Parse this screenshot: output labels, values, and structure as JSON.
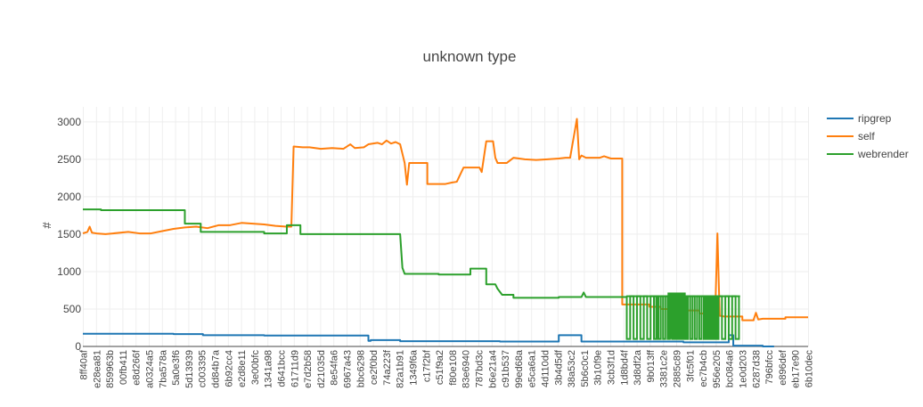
{
  "chart_data": {
    "type": "line",
    "title": "unknown type",
    "xlabel": "",
    "ylabel": "#",
    "ylim": [
      0,
      3200
    ],
    "yticks": [
      0,
      500,
      1000,
      1500,
      2000,
      2500,
      3000
    ],
    "grid": true,
    "legend_position": "top-right",
    "x_tick_labels": [
      "8ff40af",
      "e28ea81",
      "859963b",
      "00fb411",
      "e8d266f",
      "a0324a5",
      "7ba578a",
      "5a0e3f6",
      "5d13939",
      "c003395",
      "dd84b7a",
      "6b92cc4",
      "e2d8e11",
      "3e00bfc",
      "1341a98",
      "d641bcc",
      "61711d9",
      "e7d2b58",
      "d21035d",
      "8e54fa6",
      "6967a43",
      "bbc6298",
      "ce2f0bd",
      "74a223f",
      "82a1b91",
      "1349f6a",
      "c17f2bf",
      "c51f9a2",
      "f80e108",
      "83e6940",
      "787bd3c",
      "b6e21a4",
      "c91b537",
      "99ed68a",
      "e5ca6a1",
      "4d110dd",
      "3b4d5df",
      "38a53c2",
      "5b6c0c1",
      "3b10f9e",
      "3cb3f1d",
      "1d8bd4f",
      "3d8df2a",
      "9b013ff",
      "3381c2e",
      "2885c89",
      "3fc5f01",
      "ec7b4cb",
      "956e205",
      "bc084a6",
      "1e0d203",
      "6287d38",
      "796bfcc",
      "e896def",
      "eb17e90",
      "6b10dec"
    ],
    "series": [
      {
        "name": "ripgrep",
        "color": "#1f77b4",
        "values": [
          [
            0,
            170
          ],
          [
            40,
            170
          ],
          [
            40,
            165
          ],
          [
            53,
            165
          ],
          [
            53,
            150
          ],
          [
            80,
            150
          ],
          [
            80,
            145
          ],
          [
            126,
            145
          ],
          [
            126,
            75
          ],
          [
            127,
            75
          ],
          [
            127,
            85
          ],
          [
            140,
            85
          ],
          [
            140,
            70
          ],
          [
            184,
            70
          ],
          [
            184,
            65
          ],
          [
            210,
            65
          ],
          [
            210,
            150
          ],
          [
            220,
            150
          ],
          [
            220,
            65
          ],
          [
            265,
            65
          ],
          [
            265,
            55
          ],
          [
            270,
            55
          ],
          [
            270,
            55
          ],
          [
            285,
            55
          ],
          [
            285,
            150
          ],
          [
            287,
            150
          ],
          [
            287,
            10
          ],
          [
            300,
            10
          ],
          [
            300,
            0
          ],
          [
            305,
            0
          ]
        ]
      },
      {
        "name": "self",
        "color": "#ff7f0e",
        "values": [
          [
            0,
            1510
          ],
          [
            2,
            1530
          ],
          [
            3,
            1600
          ],
          [
            4,
            1520
          ],
          [
            6,
            1510
          ],
          [
            10,
            1500
          ],
          [
            20,
            1530
          ],
          [
            25,
            1510
          ],
          [
            30,
            1510
          ],
          [
            35,
            1540
          ],
          [
            40,
            1570
          ],
          [
            45,
            1590
          ],
          [
            50,
            1600
          ],
          [
            55,
            1580
          ],
          [
            60,
            1620
          ],
          [
            65,
            1620
          ],
          [
            70,
            1650
          ],
          [
            75,
            1640
          ],
          [
            80,
            1630
          ],
          [
            85,
            1610
          ],
          [
            90,
            1600
          ],
          [
            92,
            1600
          ],
          [
            93,
            2670
          ],
          [
            97,
            2660
          ],
          [
            100,
            2660
          ],
          [
            105,
            2640
          ],
          [
            110,
            2650
          ],
          [
            115,
            2640
          ],
          [
            118,
            2700
          ],
          [
            120,
            2650
          ],
          [
            124,
            2660
          ],
          [
            126,
            2700
          ],
          [
            130,
            2720
          ],
          [
            132,
            2700
          ],
          [
            134,
            2750
          ],
          [
            136,
            2710
          ],
          [
            138,
            2730
          ],
          [
            140,
            2700
          ],
          [
            142,
            2450
          ],
          [
            143,
            2160
          ],
          [
            144,
            2450
          ],
          [
            152,
            2450
          ],
          [
            152,
            2170
          ],
          [
            160,
            2170
          ],
          [
            163,
            2190
          ],
          [
            165,
            2200
          ],
          [
            168,
            2390
          ],
          [
            175,
            2390
          ],
          [
            176,
            2330
          ],
          [
            178,
            2740
          ],
          [
            181,
            2740
          ],
          [
            182,
            2520
          ],
          [
            183,
            2450
          ],
          [
            187,
            2450
          ],
          [
            190,
            2520
          ],
          [
            195,
            2500
          ],
          [
            200,
            2490
          ],
          [
            205,
            2500
          ],
          [
            210,
            2510
          ],
          [
            213,
            2520
          ],
          [
            215,
            2520
          ],
          [
            218,
            3040
          ],
          [
            219,
            2500
          ],
          [
            220,
            2550
          ],
          [
            222,
            2520
          ],
          [
            228,
            2520
          ],
          [
            230,
            2540
          ],
          [
            233,
            2510
          ],
          [
            238,
            2510
          ],
          [
            238,
            560
          ],
          [
            250,
            560
          ],
          [
            250,
            530
          ],
          [
            255,
            530
          ],
          [
            255,
            500
          ],
          [
            265,
            500
          ],
          [
            265,
            480
          ],
          [
            272,
            480
          ],
          [
            272,
            440
          ],
          [
            275,
            440
          ],
          [
            275,
            420
          ],
          [
            279,
            420
          ],
          [
            280,
            1510
          ],
          [
            281,
            410
          ],
          [
            283,
            400
          ],
          [
            291,
            400
          ],
          [
            291,
            350
          ],
          [
            296,
            350
          ],
          [
            296,
            360
          ],
          [
            297,
            450
          ],
          [
            298,
            360
          ],
          [
            300,
            370
          ],
          [
            310,
            370
          ],
          [
            310,
            390
          ],
          [
            320,
            390
          ]
        ]
      },
      {
        "name": "webrender",
        "color": "#2ca02c",
        "values": [
          [
            0,
            1830
          ],
          [
            8,
            1830
          ],
          [
            8,
            1820
          ],
          [
            45,
            1820
          ],
          [
            45,
            1640
          ],
          [
            52,
            1640
          ],
          [
            52,
            1530
          ],
          [
            80,
            1530
          ],
          [
            80,
            1510
          ],
          [
            90,
            1510
          ],
          [
            90,
            1620
          ],
          [
            96,
            1620
          ],
          [
            96,
            1500
          ],
          [
            140,
            1500
          ],
          [
            141,
            1050
          ],
          [
            142,
            970
          ],
          [
            157,
            970
          ],
          [
            157,
            960
          ],
          [
            171,
            960
          ],
          [
            171,
            1040
          ],
          [
            178,
            1040
          ],
          [
            178,
            830
          ],
          [
            182,
            830
          ],
          [
            183,
            770
          ],
          [
            185,
            690
          ],
          [
            190,
            690
          ],
          [
            190,
            650
          ],
          [
            210,
            650
          ],
          [
            210,
            660
          ],
          [
            220,
            660
          ],
          [
            221,
            720
          ],
          [
            222,
            660
          ],
          [
            240,
            660
          ],
          [
            240,
            670
          ],
          [
            290,
            670
          ]
        ]
      }
    ]
  }
}
